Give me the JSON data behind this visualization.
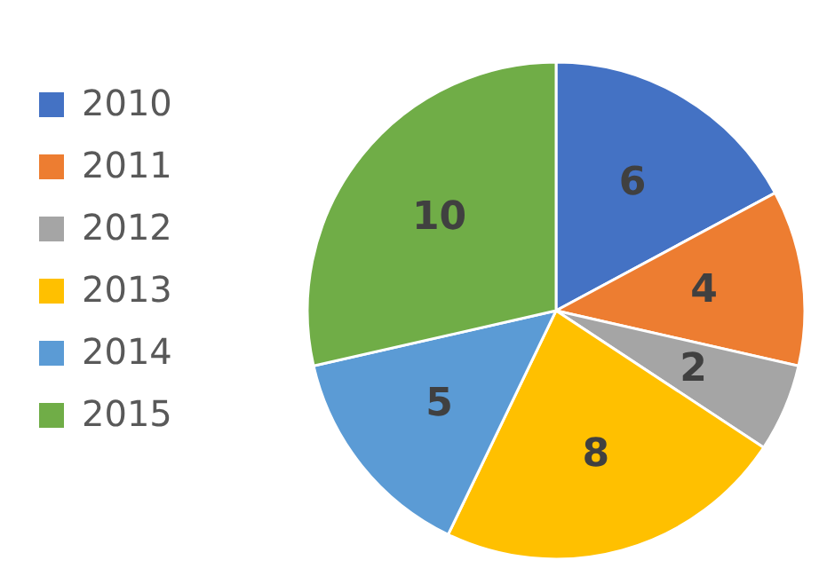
{
  "chart_data": {
    "type": "pie",
    "categories": [
      "2010",
      "2011",
      "2012",
      "2013",
      "2014",
      "2015"
    ],
    "values": [
      6,
      4,
      2,
      8,
      5,
      10
    ],
    "colors": [
      "#4472c4",
      "#ed7d31",
      "#a5a5a5",
      "#ffc000",
      "#5b9bd5",
      "#70ad47"
    ],
    "data_labels": true,
    "legend": "left"
  }
}
